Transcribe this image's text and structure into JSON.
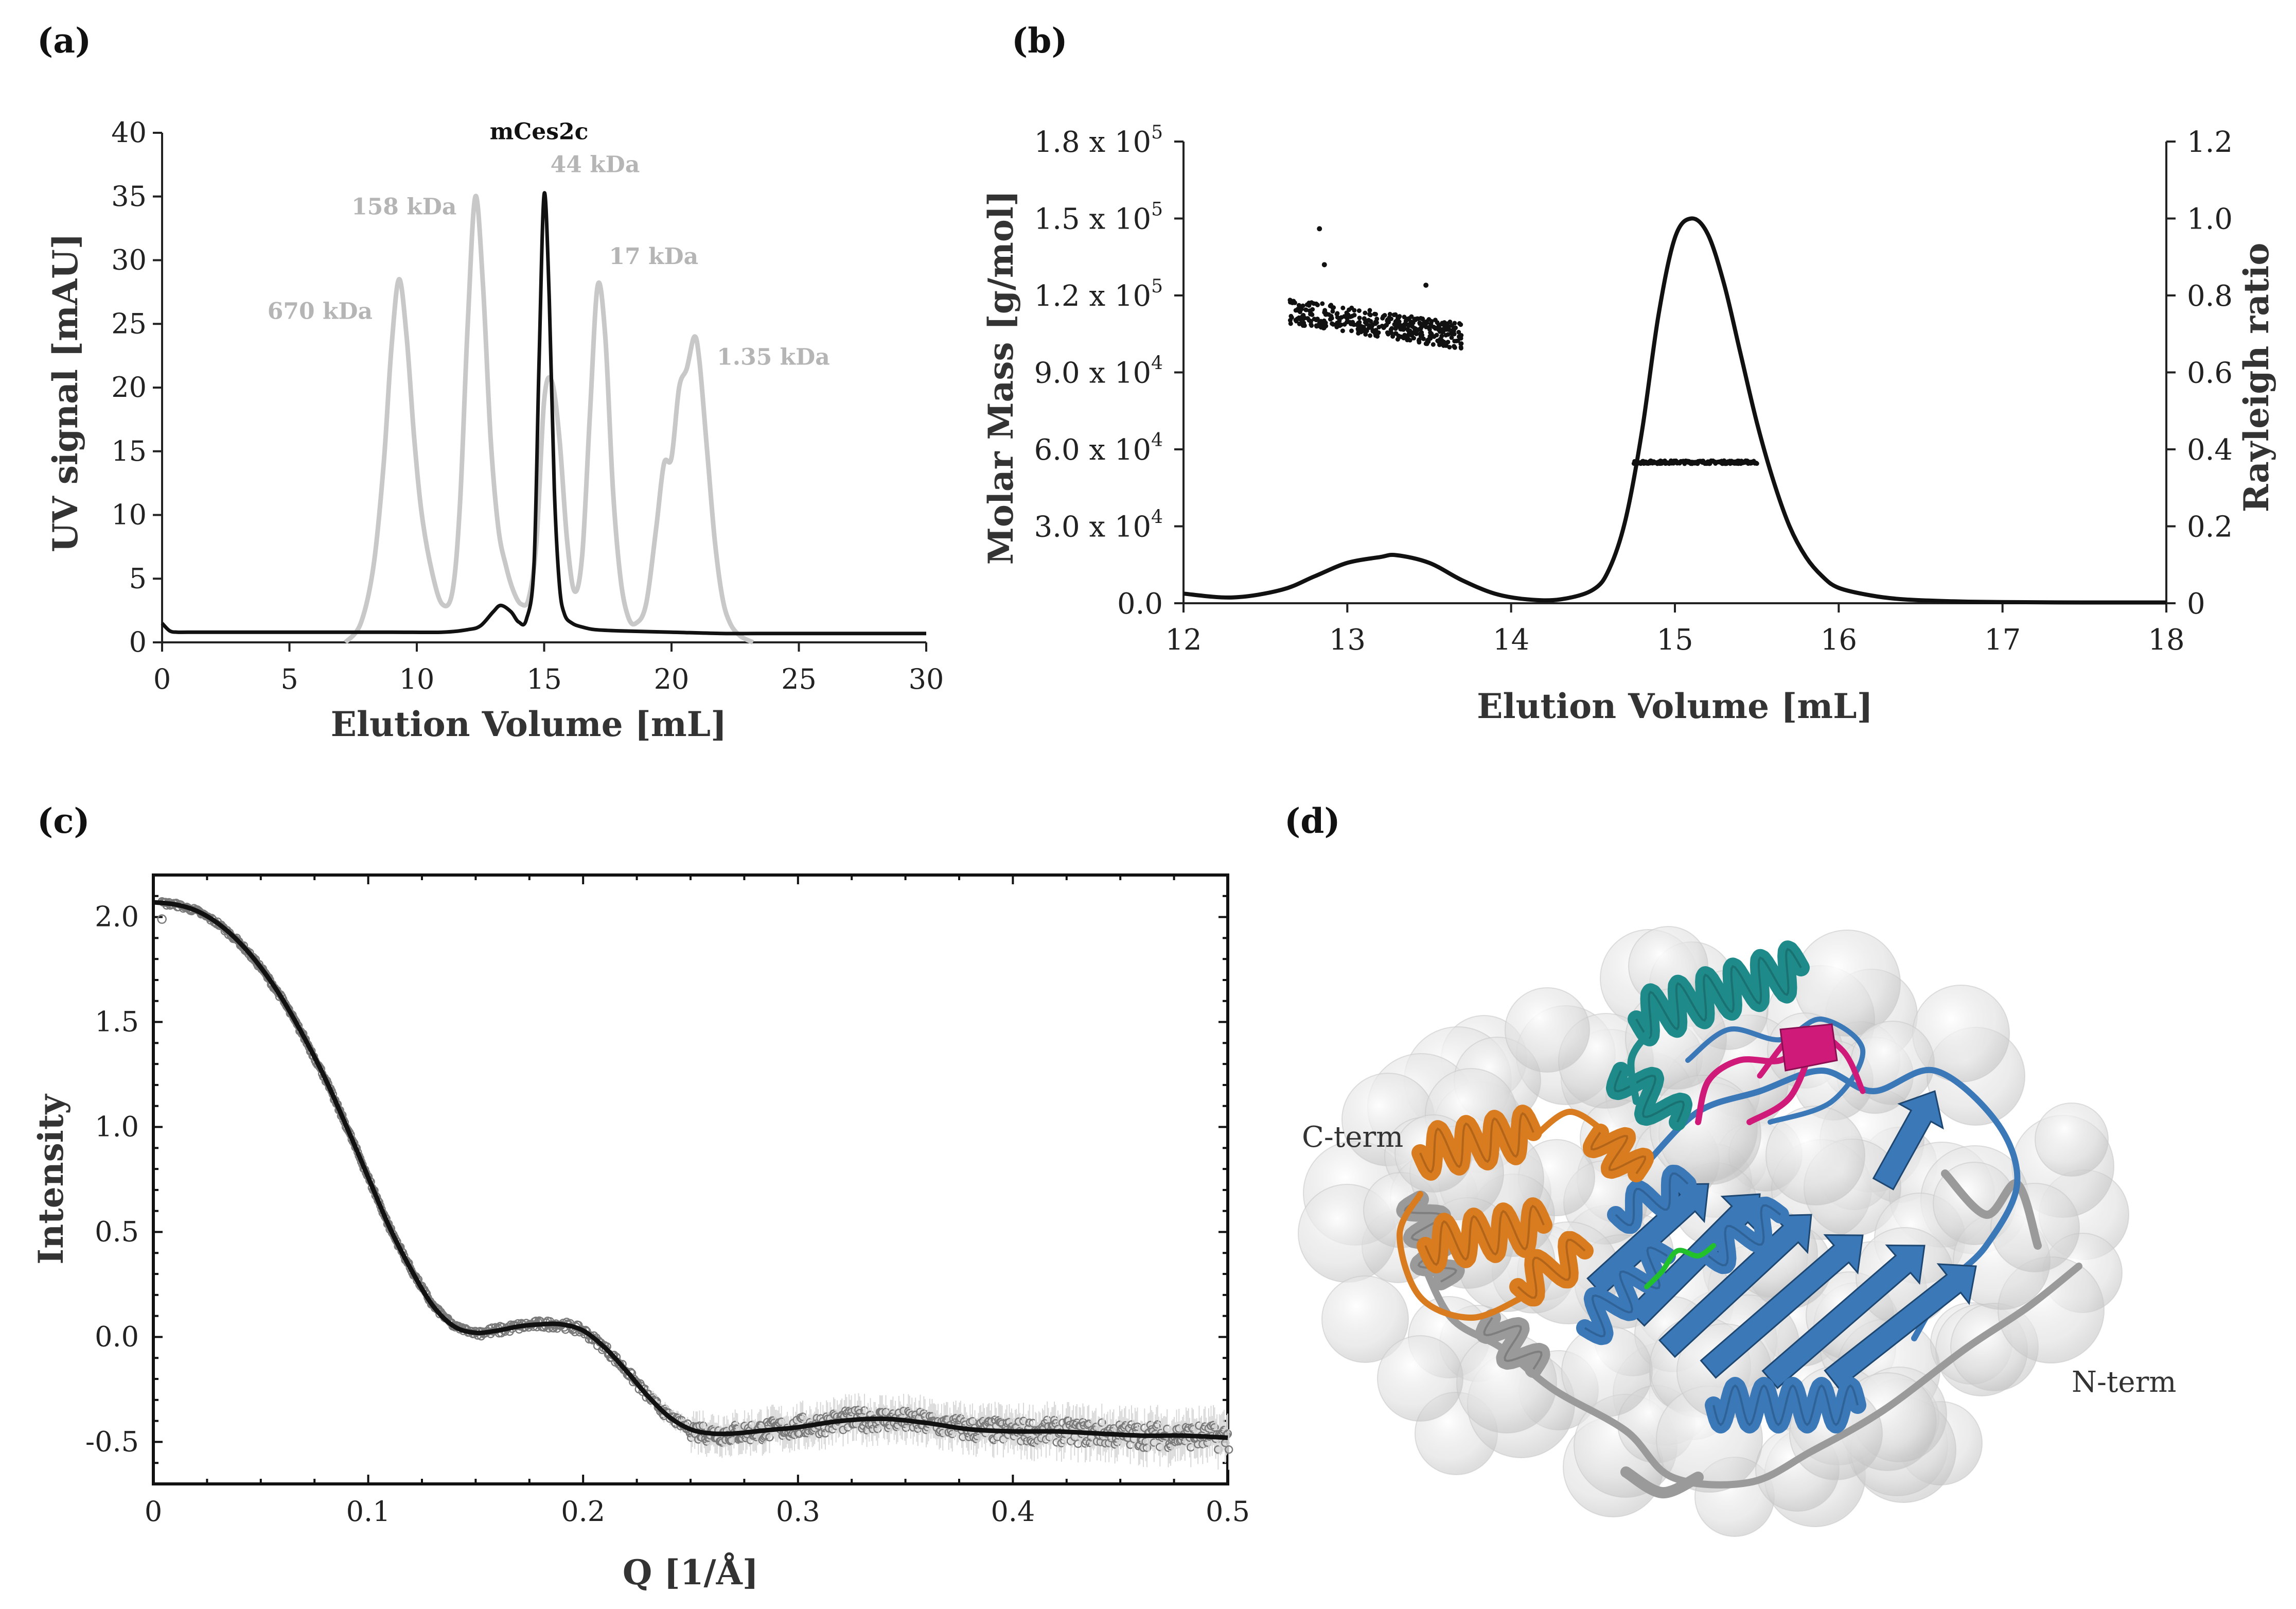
{
  "panels": {
    "a": "(a)",
    "b": "(b)",
    "c": "(c)",
    "d": "(d)"
  },
  "chart_data": [
    {
      "panel": "a",
      "type": "line",
      "xlabel": "Elution Volume [mL]",
      "ylabel": "UV signal [mAU]",
      "xlim": [
        0,
        30
      ],
      "ylim": [
        0,
        40
      ],
      "xticks": [
        0,
        5,
        10,
        15,
        20,
        25,
        30
      ],
      "yticks": [
        0,
        5,
        10,
        15,
        20,
        25,
        30,
        35,
        40
      ],
      "annotations": [
        {
          "text": "mCes2c",
          "x": 14.8,
          "y": 39.5,
          "color": "#111111"
        },
        {
          "text": "44 kDa",
          "x": 17.0,
          "y": 36.9,
          "color": "#b5b5b5"
        },
        {
          "text": "158 kDa",
          "x": 9.5,
          "y": 33.6,
          "color": "#b5b5b5"
        },
        {
          "text": "17 kDa",
          "x": 19.3,
          "y": 29.7,
          "color": "#b5b5b5"
        },
        {
          "text": "670 kDa",
          "x": 6.2,
          "y": 25.4,
          "color": "#b5b5b5"
        },
        {
          "text": "1.35 kDa",
          "x": 24.0,
          "y": 21.8,
          "color": "#b5b5b5"
        }
      ],
      "series": [
        {
          "color": "#c8c8c8",
          "x": [
            7.2,
            7.8,
            8.3,
            8.7,
            9.0,
            9.3,
            9.6,
            9.9,
            10.2,
            10.6,
            11.0,
            11.4,
            11.7,
            12.0,
            12.3,
            12.6,
            12.9,
            13.2,
            13.5,
            13.8,
            14.1,
            14.4,
            14.7,
            15.0,
            15.3,
            15.6,
            15.9,
            16.2,
            16.5,
            16.8,
            17.1,
            17.4,
            17.7,
            18.0,
            18.3,
            18.6,
            19.0,
            19.4,
            19.7,
            20.0,
            20.3,
            20.6,
            20.9,
            21.1,
            21.4,
            21.7,
            22.0,
            22.3,
            22.7,
            23.2
          ],
          "y": [
            0,
            1.5,
            6,
            14,
            23,
            28.5,
            24,
            16,
            10,
            5.5,
            3,
            4,
            11,
            25,
            35,
            28,
            16,
            9,
            6,
            4,
            3,
            3.5,
            8,
            19,
            20.5,
            16,
            8,
            4,
            7,
            18,
            28,
            24,
            12,
            5,
            2,
            1.5,
            3,
            9,
            14,
            14.5,
            20,
            21.5,
            24,
            22,
            15,
            8,
            3.5,
            1.5,
            0.5,
            0
          ]
        },
        {
          "color": "#111111",
          "x": [
            0,
            0.3,
            0.6,
            1.0,
            3,
            6,
            9,
            11,
            12,
            12.5,
            13.0,
            13.3,
            13.7,
            14.0,
            14.3,
            14.6,
            14.8,
            15.0,
            15.2,
            15.4,
            15.6,
            15.8,
            16.1,
            16.5,
            17,
            18,
            20,
            22,
            24,
            26,
            28,
            30
          ],
          "y": [
            1.5,
            0.9,
            0.8,
            0.8,
            0.8,
            0.8,
            0.8,
            0.8,
            1.0,
            1.3,
            2.4,
            2.9,
            2.4,
            1.6,
            1.8,
            6,
            22,
            35.2,
            27,
            12,
            4.5,
            2.2,
            1.5,
            1.2,
            1.0,
            0.9,
            0.8,
            0.7,
            0.7,
            0.7,
            0.7,
            0.7
          ]
        }
      ]
    },
    {
      "panel": "b",
      "type": "line",
      "xlabel": "Elution Volume [mL]",
      "ylabel": "Molar Mass [g/mol]",
      "y2label": "Rayleigh ratio",
      "xlim": [
        12,
        18
      ],
      "ylim": [
        0,
        180000
      ],
      "y2lim": [
        0,
        1.2
      ],
      "xticks": [
        12,
        13,
        14,
        15,
        16,
        17,
        18
      ],
      "yticks": [
        {
          "mant": "0.0",
          "exp": "",
          "v": 0
        },
        {
          "mant": "3.0 x 10",
          "exp": "4",
          "v": 30000
        },
        {
          "mant": "6.0 x 10",
          "exp": "4",
          "v": 60000
        },
        {
          "mant": "9.0 x 10",
          "exp": "4",
          "v": 90000
        },
        {
          "mant": "1.2 x 10",
          "exp": "5",
          "v": 120000
        },
        {
          "mant": "1.5 x 10",
          "exp": "5",
          "v": 150000
        },
        {
          "mant": "1.8 x 10",
          "exp": "5",
          "v": 180000
        }
      ],
      "y2ticks": [
        0,
        0.2,
        0.4,
        0.6,
        0.8,
        1.0,
        1.2
      ],
      "y2ticklabels": [
        "0",
        "0.2",
        "0.4",
        "0.6",
        "0.8",
        "1.0",
        "1.2"
      ],
      "rayleigh": {
        "x": [
          12.0,
          12.3,
          12.6,
          12.8,
          13.0,
          13.2,
          13.3,
          13.5,
          13.7,
          13.9,
          14.1,
          14.3,
          14.5,
          14.6,
          14.7,
          14.8,
          14.9,
          15.0,
          15.1,
          15.2,
          15.3,
          15.4,
          15.5,
          15.6,
          15.7,
          15.8,
          15.9,
          16.0,
          16.2,
          16.4,
          16.7,
          17.0,
          17.5,
          18.0
        ],
        "y": [
          0.025,
          0.015,
          0.035,
          0.07,
          0.105,
          0.12,
          0.125,
          0.105,
          0.06,
          0.025,
          0.01,
          0.01,
          0.035,
          0.09,
          0.22,
          0.45,
          0.75,
          0.95,
          1.0,
          0.96,
          0.83,
          0.65,
          0.47,
          0.32,
          0.2,
          0.12,
          0.07,
          0.04,
          0.02,
          0.01,
          0.005,
          0.003,
          0.002,
          0.002
        ]
      },
      "molar_mass_aggregate": {
        "x_range": [
          12.65,
          13.7
        ],
        "y_start": 114000,
        "y_end": 104000,
        "scatter": 5000,
        "outliers": [
          [
            12.83,
            146000
          ],
          [
            12.86,
            132000
          ],
          [
            13.48,
            124000
          ]
        ]
      },
      "molar_mass_main": {
        "x_range": [
          14.75,
          15.5
        ],
        "y": 55000
      }
    },
    {
      "panel": "c",
      "type": "scatter",
      "xlabel": "Q [1/Å]",
      "ylabel": "Intensity",
      "xlim": [
        0,
        0.5
      ],
      "ylim": [
        -0.7,
        2.2
      ],
      "xticks": [
        0,
        0.1,
        0.2,
        0.3,
        0.4,
        0.5
      ],
      "xticklabels": [
        "0",
        "0.1",
        "0.2",
        "0.3",
        "0.4",
        "0.5"
      ],
      "yticks": [
        -0.5,
        0.0,
        0.5,
        1.0,
        1.5,
        2.0
      ],
      "yticklabels": [
        "-0.5",
        "0.0",
        "0.5",
        "1.0",
        "1.5",
        "2.0"
      ],
      "fit": {
        "x": [
          0,
          0.01,
          0.02,
          0.03,
          0.04,
          0.05,
          0.06,
          0.07,
          0.08,
          0.09,
          0.1,
          0.11,
          0.12,
          0.13,
          0.14,
          0.15,
          0.16,
          0.17,
          0.18,
          0.19,
          0.2,
          0.21,
          0.22,
          0.23,
          0.24,
          0.25,
          0.26,
          0.27,
          0.28,
          0.29,
          0.3,
          0.32,
          0.34,
          0.36,
          0.38,
          0.4,
          0.42,
          0.44,
          0.46,
          0.48,
          0.5
        ],
        "y": [
          2.07,
          2.06,
          2.03,
          1.97,
          1.88,
          1.76,
          1.61,
          1.43,
          1.23,
          1.0,
          0.76,
          0.52,
          0.32,
          0.15,
          0.05,
          0.02,
          0.03,
          0.05,
          0.06,
          0.06,
          0.03,
          -0.05,
          -0.16,
          -0.28,
          -0.38,
          -0.44,
          -0.46,
          -0.46,
          -0.45,
          -0.44,
          -0.43,
          -0.4,
          -0.39,
          -0.41,
          -0.44,
          -0.45,
          -0.45,
          -0.46,
          -0.47,
          -0.47,
          -0.48
        ]
      }
    }
  ],
  "structure": {
    "c_term_label": "C-term",
    "n_term_label": "N-term",
    "colors": {
      "main": "#3a78b8",
      "cap": "#d97b1f",
      "lid": "#1f8a8a",
      "loop": "#d01a7a",
      "other": "#9a9a9a",
      "ligand": "#22c02a"
    }
  }
}
